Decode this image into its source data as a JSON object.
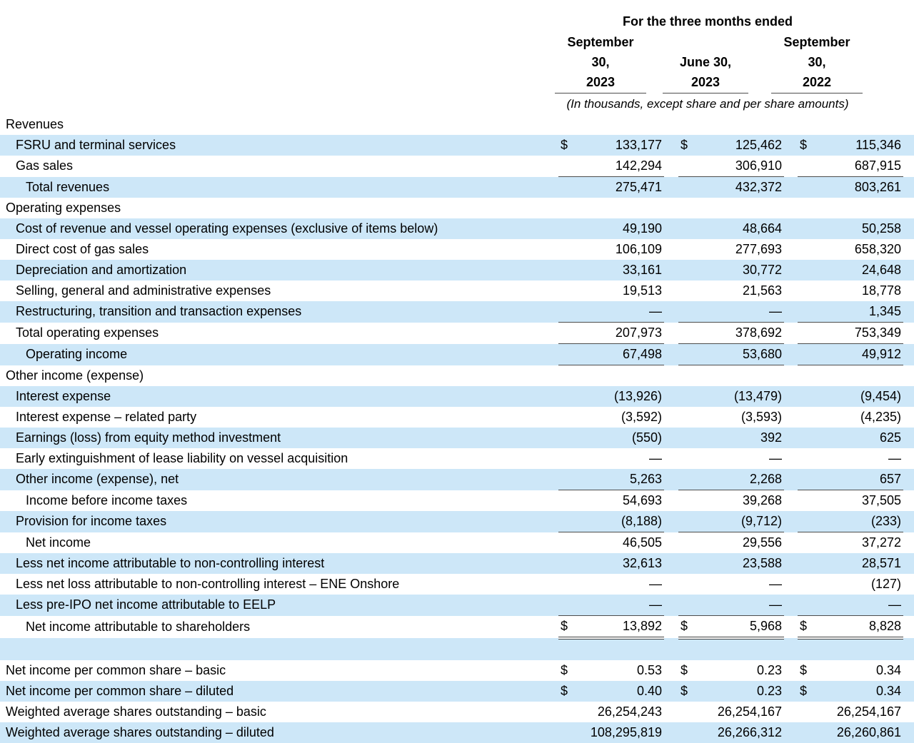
{
  "table": {
    "title": "For the three months ended",
    "subtitle": "(In thousands, except share and per share amounts)",
    "columns": [
      {
        "line1": "September",
        "line2": "30,",
        "line3": "2023"
      },
      {
        "line1": "",
        "line2": "June 30,",
        "line3": "2023"
      },
      {
        "line1": "September",
        "line2": "30,",
        "line3": "2022"
      }
    ],
    "colors": {
      "row_stripe": "#cde7f8",
      "rule_line": "#4d4d4d",
      "text": "#000000"
    },
    "rows": [
      {
        "label": "Revenues",
        "indent": 0,
        "dollar": false,
        "rule": "none",
        "values": [
          "",
          "",
          ""
        ]
      },
      {
        "label": "FSRU and terminal services",
        "indent": 1,
        "dollar": true,
        "rule": "none",
        "values": [
          "133,177",
          "125,462",
          "115,346"
        ]
      },
      {
        "label": "Gas sales",
        "indent": 1,
        "dollar": false,
        "rule": "single",
        "values": [
          "142,294",
          "306,910",
          "687,915"
        ]
      },
      {
        "label": "Total revenues",
        "indent": 2,
        "dollar": false,
        "rule": "none",
        "values": [
          "275,471",
          "432,372",
          "803,261"
        ]
      },
      {
        "label": "Operating expenses",
        "indent": 0,
        "dollar": false,
        "rule": "none",
        "values": [
          "",
          "",
          ""
        ]
      },
      {
        "label": "Cost of revenue and vessel operating expenses (exclusive of items below)",
        "indent": 1,
        "dollar": false,
        "rule": "none",
        "values": [
          "49,190",
          "48,664",
          "50,258"
        ]
      },
      {
        "label": "Direct cost of gas sales",
        "indent": 1,
        "dollar": false,
        "rule": "none",
        "values": [
          "106,109",
          "277,693",
          "658,320"
        ]
      },
      {
        "label": "Depreciation and amortization",
        "indent": 1,
        "dollar": false,
        "rule": "none",
        "values": [
          "33,161",
          "30,772",
          "24,648"
        ]
      },
      {
        "label": "Selling, general and administrative expenses",
        "indent": 1,
        "dollar": false,
        "rule": "none",
        "values": [
          "19,513",
          "21,563",
          "18,778"
        ]
      },
      {
        "label": "Restructuring, transition and transaction expenses",
        "indent": 1,
        "dollar": false,
        "rule": "single",
        "values": [
          "—",
          "—",
          "1,345"
        ]
      },
      {
        "label": "Total operating expenses",
        "indent": 1,
        "dollar": false,
        "rule": "single",
        "values": [
          "207,973",
          "378,692",
          "753,349"
        ]
      },
      {
        "label": "Operating income",
        "indent": 2,
        "dollar": false,
        "rule": "single",
        "values": [
          "67,498",
          "53,680",
          "49,912"
        ]
      },
      {
        "label": "Other income (expense)",
        "indent": 0,
        "dollar": false,
        "rule": "none",
        "values": [
          "",
          "",
          ""
        ]
      },
      {
        "label": "Interest expense",
        "indent": 1,
        "dollar": false,
        "rule": "none",
        "values": [
          "(13,926)",
          "(13,479)",
          "(9,454)"
        ]
      },
      {
        "label": "Interest expense – related party",
        "indent": 1,
        "dollar": false,
        "rule": "none",
        "values": [
          "(3,592)",
          "(3,593)",
          "(4,235)"
        ]
      },
      {
        "label": "Earnings (loss) from equity method investment",
        "indent": 1,
        "dollar": false,
        "rule": "none",
        "values": [
          "(550)",
          "392",
          "625"
        ]
      },
      {
        "label": "Early extinguishment of lease liability on vessel acquisition",
        "indent": 1,
        "dollar": false,
        "rule": "none",
        "values": [
          "—",
          "—",
          "—"
        ]
      },
      {
        "label": "Other income (expense), net",
        "indent": 1,
        "dollar": false,
        "rule": "single",
        "values": [
          "5,263",
          "2,268",
          "657"
        ]
      },
      {
        "label": "Income before income taxes",
        "indent": 2,
        "dollar": false,
        "rule": "none",
        "values": [
          "54,693",
          "39,268",
          "37,505"
        ]
      },
      {
        "label": "Provision for income taxes",
        "indent": 1,
        "dollar": false,
        "rule": "single",
        "values": [
          "(8,188)",
          "(9,712)",
          "(233)"
        ]
      },
      {
        "label": "Net income",
        "indent": 2,
        "dollar": false,
        "rule": "none",
        "values": [
          "46,505",
          "29,556",
          "37,272"
        ]
      },
      {
        "label": "Less net income attributable to non-controlling interest",
        "indent": 1,
        "dollar": false,
        "rule": "none",
        "values": [
          "32,613",
          "23,588",
          "28,571"
        ]
      },
      {
        "label": "Less net loss attributable to non-controlling interest – ENE Onshore",
        "indent": 1,
        "dollar": false,
        "rule": "none",
        "values": [
          "—",
          "—",
          "(127)"
        ]
      },
      {
        "label": "Less pre-IPO net income attributable to EELP",
        "indent": 1,
        "dollar": false,
        "rule": "single",
        "values": [
          "—",
          "—",
          "—"
        ]
      },
      {
        "label": "Net income attributable to shareholders",
        "indent": 2,
        "dollar": true,
        "rule": "double",
        "values": [
          "13,892",
          "5,968",
          "8,828"
        ]
      },
      {
        "label": "",
        "indent": 0,
        "dollar": false,
        "rule": "none",
        "values": [
          "",
          "",
          ""
        ]
      },
      {
        "label": "Net income per common share – basic",
        "indent": 0,
        "dollar": true,
        "rule": "none",
        "values": [
          "0.53",
          "0.23",
          "0.34"
        ]
      },
      {
        "label": "Net income per common share – diluted",
        "indent": 0,
        "dollar": true,
        "rule": "none",
        "values": [
          "0.40",
          "0.23",
          "0.34"
        ]
      },
      {
        "label": "Weighted average shares outstanding – basic",
        "indent": 0,
        "dollar": false,
        "rule": "none",
        "values": [
          "26,254,243",
          "26,254,167",
          "26,254,167"
        ]
      },
      {
        "label": "Weighted average shares outstanding – diluted",
        "indent": 0,
        "dollar": false,
        "rule": "none",
        "values": [
          "108,295,819",
          "26,266,312",
          "26,260,861"
        ]
      }
    ]
  }
}
